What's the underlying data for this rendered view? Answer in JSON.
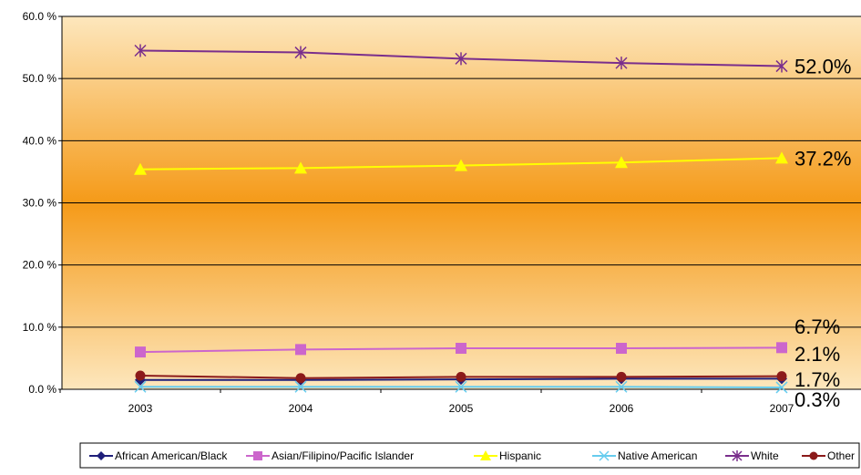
{
  "chart_data": {
    "type": "line",
    "categories": [
      "2003",
      "2004",
      "2005",
      "2006",
      "2007"
    ],
    "ylim": [
      0,
      60
    ],
    "yticks": [
      "0.0 %",
      "10.0 %",
      "20.0 %",
      "30.0 %",
      "40.0 %",
      "50.0 %",
      "60.0 %"
    ],
    "grid": true,
    "legend_position": "bottom",
    "series": [
      {
        "name": "African American/Black",
        "color": "#1f1f7a",
        "marker": "diamond",
        "values": [
          1.5,
          1.5,
          1.6,
          1.7,
          1.7
        ]
      },
      {
        "name": "Asian/Filipino/Pacific Islander",
        "color": "#cc66cc",
        "marker": "square",
        "values": [
          6.0,
          6.4,
          6.6,
          6.6,
          6.7
        ]
      },
      {
        "name": "Hispanic",
        "color": "#ffff00",
        "marker": "triangle",
        "values": [
          35.4,
          35.6,
          36.0,
          36.5,
          37.2
        ]
      },
      {
        "name": "Native American",
        "color": "#66ccee",
        "marker": "x",
        "values": [
          0.4,
          0.4,
          0.4,
          0.4,
          0.3
        ]
      },
      {
        "name": "White",
        "color": "#7a2e8c",
        "marker": "star",
        "values": [
          54.5,
          54.2,
          53.2,
          52.5,
          52.0
        ]
      },
      {
        "name": "Other",
        "color": "#8b1a1a",
        "marker": "circle",
        "values": [
          2.2,
          1.8,
          2.0,
          2.0,
          2.1
        ]
      }
    ],
    "end_labels": [
      {
        "text": "52.0%",
        "series": 4
      },
      {
        "text": "37.2%",
        "series": 2
      },
      {
        "text": "6.7%",
        "series": 1
      },
      {
        "text": "2.1%",
        "series": 5
      },
      {
        "text": "1.7%",
        "series": 0
      },
      {
        "text": "0.3%",
        "series": 3
      }
    ]
  }
}
